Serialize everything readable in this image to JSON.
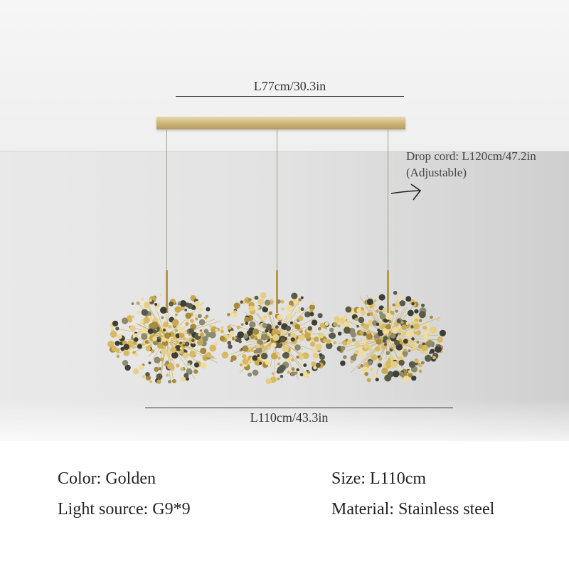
{
  "dimensions": {
    "canopy_length": "L77cm/30.3in",
    "drop_cord": "Drop cord: L120cm/47.2in",
    "drop_cord_note": "(Adjustable)",
    "total_length": "L110cm/43.3in"
  },
  "specs": {
    "color": "Color: Golden",
    "light_source": "Light source: G9*9",
    "size": "Size: L110cm",
    "material": "Material: Stainless steel"
  },
  "colors": {
    "gold": "#c9a94e",
    "background": "#e2e2e2",
    "text": "#222222"
  },
  "icons": {
    "arrow": "arrow-right-icon"
  }
}
